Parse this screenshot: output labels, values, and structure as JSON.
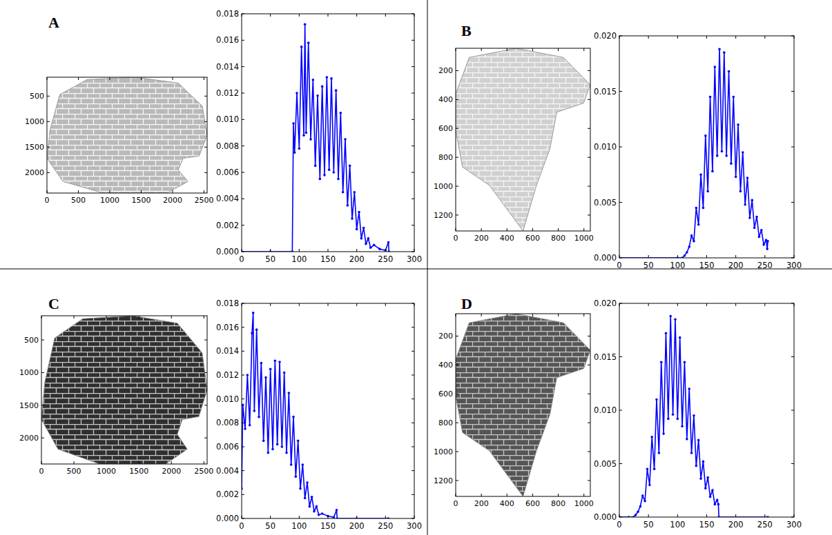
{
  "chart_data": [
    {
      "type": "image",
      "title": "A",
      "color": "#b9b9b9",
      "xlim": [
        0,
        2550
      ],
      "ylim": [
        2400,
        130
      ],
      "xticks": [
        0,
        500,
        1000,
        1500,
        2000,
        2500
      ],
      "yticks": [
        500,
        1000,
        1500,
        2000
      ]
    },
    {
      "type": "line",
      "color": "#0000ff",
      "marker": "circle",
      "xlim": [
        0,
        300
      ],
      "ylim": [
        0,
        0.018
      ],
      "xticks": [
        0,
        50,
        100,
        150,
        200,
        250,
        300
      ],
      "yticks": [
        {
          "value": 0,
          "label": "0.000"
        },
        {
          "value": 0.002,
          "label": "0.002"
        },
        {
          "value": 0.004,
          "label": "0.004"
        },
        {
          "value": 0.006,
          "label": "0.006"
        },
        {
          "value": 0.008,
          "label": "0.008"
        },
        {
          "value": 0.01,
          "label": "0.010"
        },
        {
          "value": 0.012,
          "label": "0.012"
        },
        {
          "value": 0.014,
          "label": "0.014"
        },
        {
          "value": 0.016,
          "label": "0.016"
        },
        {
          "value": 0.018,
          "label": "0.018"
        }
      ],
      "x": [
        0,
        50,
        88,
        90,
        92,
        96,
        100,
        104,
        108,
        110,
        112,
        116,
        120,
        124,
        128,
        132,
        136,
        140,
        144,
        148,
        152,
        156,
        160,
        164,
        168,
        172,
        176,
        180,
        184,
        188,
        192,
        196,
        200,
        204,
        208,
        212,
        216,
        220,
        224,
        230,
        240,
        250,
        255,
        256
      ],
      "values": [
        0,
        0,
        0,
        0.0097,
        0.0075,
        0.012,
        0.0078,
        0.0155,
        0.0088,
        0.0172,
        0.009,
        0.0158,
        0.0085,
        0.013,
        0.0065,
        0.0118,
        0.0055,
        0.0125,
        0.0058,
        0.0132,
        0.0062,
        0.0131,
        0.006,
        0.0122,
        0.0055,
        0.0105,
        0.0045,
        0.0085,
        0.0035,
        0.0065,
        0.0025,
        0.0045,
        0.0017,
        0.003,
        0.001,
        0.0018,
        0.0006,
        0.001,
        0.0003,
        0.0005,
        0.0002,
        0.0001,
        0.0007,
        0
      ]
    },
    {
      "type": "image",
      "title": "B",
      "color": "#d0d0d0",
      "xlim": [
        0,
        1050
      ],
      "ylim": [
        1310,
        45
      ],
      "xticks": [
        0,
        200,
        400,
        600,
        800,
        1000
      ],
      "yticks": [
        200,
        400,
        600,
        800,
        1000,
        1200
      ]
    },
    {
      "type": "line",
      "color": "#0000ff",
      "marker": "circle",
      "xlim": [
        0,
        300
      ],
      "ylim": [
        0,
        0.02
      ],
      "xticks": [
        0,
        50,
        100,
        150,
        200,
        250,
        300
      ],
      "yticks": [
        {
          "value": 0,
          "label": "0.000"
        },
        {
          "value": 0.005,
          "label": "0.005"
        },
        {
          "value": 0.01,
          "label": "0.010"
        },
        {
          "value": 0.015,
          "label": "0.015"
        },
        {
          "value": 0.02,
          "label": "0.020"
        }
      ],
      "x": [
        0,
        100,
        108,
        112,
        116,
        120,
        124,
        128,
        132,
        136,
        140,
        144,
        148,
        152,
        156,
        160,
        164,
        168,
        172,
        176,
        180,
        184,
        188,
        192,
        196,
        200,
        204,
        208,
        212,
        216,
        220,
        224,
        228,
        232,
        236,
        240,
        244,
        248,
        252,
        254,
        255
      ],
      "values": [
        0,
        0,
        0,
        0.0002,
        0.0005,
        0.001,
        0.002,
        0.0015,
        0.0045,
        0.003,
        0.0075,
        0.0045,
        0.011,
        0.006,
        0.0145,
        0.0078,
        0.0172,
        0.0092,
        0.0188,
        0.0096,
        0.0185,
        0.0092,
        0.0168,
        0.0085,
        0.0145,
        0.0073,
        0.012,
        0.006,
        0.0095,
        0.0048,
        0.0072,
        0.0036,
        0.0052,
        0.0027,
        0.0037,
        0.0019,
        0.0025,
        0.0012,
        0.0016,
        0.0008,
        0.0015
      ]
    },
    {
      "type": "image",
      "title": "C",
      "color": "#2f2f2f",
      "xlim": [
        0,
        2550
      ],
      "ylim": [
        2400,
        130
      ],
      "xticks": [
        0,
        500,
        1000,
        1500,
        2000,
        2500
      ],
      "yticks": [
        500,
        1000,
        1500,
        2000
      ]
    },
    {
      "type": "line",
      "color": "#0000ff",
      "marker": "circle",
      "xlim": [
        0,
        300
      ],
      "ylim": [
        0,
        0.018
      ],
      "xticks": [
        0,
        50,
        100,
        150,
        200,
        250,
        300
      ],
      "yticks": [
        {
          "value": 0,
          "label": "0.000"
        },
        {
          "value": 0.002,
          "label": "0.002"
        },
        {
          "value": 0.004,
          "label": "0.004"
        },
        {
          "value": 0.006,
          "label": "0.006"
        },
        {
          "value": 0.008,
          "label": "0.008"
        },
        {
          "value": 0.01,
          "label": "0.010"
        },
        {
          "value": 0.012,
          "label": "0.012"
        },
        {
          "value": 0.014,
          "label": "0.014"
        },
        {
          "value": 0.016,
          "label": "0.016"
        },
        {
          "value": 0.018,
          "label": "0.018"
        }
      ],
      "x": [
        0,
        2,
        6,
        10,
        14,
        18,
        20,
        22,
        26,
        30,
        34,
        38,
        42,
        46,
        50,
        54,
        58,
        62,
        66,
        70,
        74,
        78,
        82,
        86,
        90,
        94,
        98,
        102,
        106,
        110,
        114,
        118,
        122,
        126,
        130,
        134,
        140,
        150,
        160,
        165,
        166,
        200,
        255
      ],
      "values": [
        0.0025,
        0.0095,
        0.0075,
        0.012,
        0.0078,
        0.0155,
        0.0172,
        0.009,
        0.0158,
        0.0085,
        0.013,
        0.0065,
        0.0118,
        0.0055,
        0.0125,
        0.0058,
        0.0132,
        0.0062,
        0.0131,
        0.006,
        0.0122,
        0.0055,
        0.0105,
        0.0045,
        0.0085,
        0.0035,
        0.0065,
        0.0025,
        0.0045,
        0.0017,
        0.003,
        0.001,
        0.0018,
        0.0006,
        0.001,
        0.0003,
        0.0004,
        0.0002,
        0.0001,
        0.0007,
        0,
        0,
        0
      ]
    },
    {
      "type": "image",
      "title": "D",
      "color": "#555555",
      "xlim": [
        0,
        1050
      ],
      "ylim": [
        1310,
        45
      ],
      "xticks": [
        0,
        200,
        400,
        600,
        800,
        1000
      ],
      "yticks": [
        200,
        400,
        600,
        800,
        1000,
        1200
      ]
    },
    {
      "type": "line",
      "color": "#0000ff",
      "marker": "circle",
      "xlim": [
        0,
        300
      ],
      "ylim": [
        0,
        0.02
      ],
      "xticks": [
        0,
        50,
        100,
        150,
        200,
        250,
        300
      ],
      "yticks": [
        {
          "value": 0,
          "label": "0.000"
        },
        {
          "value": 0.005,
          "label": "0.005"
        },
        {
          "value": 0.01,
          "label": "0.010"
        },
        {
          "value": 0.015,
          "label": "0.015"
        },
        {
          "value": 0.02,
          "label": "0.020"
        }
      ],
      "x": [
        0,
        16,
        24,
        28,
        32,
        36,
        40,
        44,
        48,
        52,
        56,
        60,
        64,
        68,
        72,
        76,
        80,
        84,
        88,
        92,
        96,
        100,
        104,
        108,
        112,
        116,
        120,
        124,
        128,
        132,
        136,
        140,
        144,
        148,
        152,
        156,
        160,
        164,
        168,
        170,
        171,
        255
      ],
      "values": [
        0,
        0,
        0,
        0.0002,
        0.0005,
        0.001,
        0.002,
        0.0015,
        0.0045,
        0.003,
        0.0075,
        0.0045,
        0.011,
        0.006,
        0.0145,
        0.0078,
        0.0172,
        0.0092,
        0.0188,
        0.0096,
        0.0185,
        0.0092,
        0.0168,
        0.0085,
        0.0145,
        0.0073,
        0.012,
        0.006,
        0.0095,
        0.0048,
        0.0072,
        0.0036,
        0.0052,
        0.0027,
        0.0037,
        0.0019,
        0.0025,
        0.0012,
        0.0016,
        0.0012,
        0,
        0
      ]
    }
  ]
}
